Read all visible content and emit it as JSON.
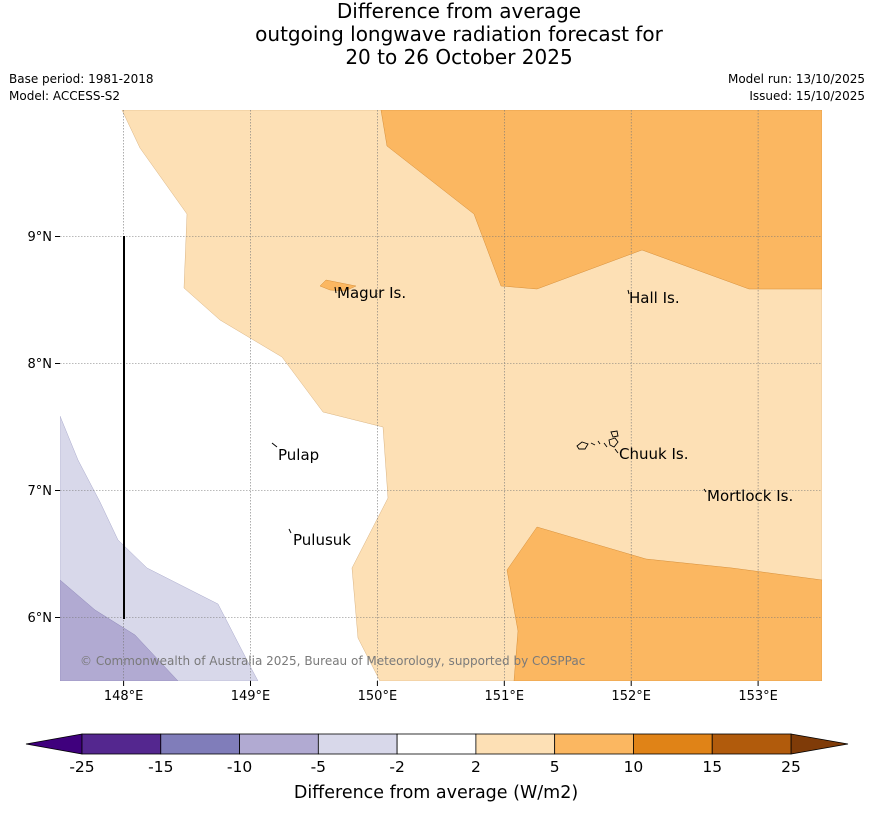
{
  "title": {
    "line1": "Difference from average",
    "line2": "outgoing longwave radiation forecast for",
    "line3": "20 to 26 October 2025"
  },
  "meta": {
    "base_period": "Base period: 1981-2018",
    "model": "Model: ACCESS-S2",
    "model_run": "Model run: 13/10/2025",
    "issued": "Issued: 15/10/2025"
  },
  "axes": {
    "lon_ticks": [
      "148°E",
      "149°E",
      "150°E",
      "151°E",
      "152°E",
      "153°E"
    ],
    "lat_ticks": [
      "9°N",
      "8°N",
      "7°N",
      "6°N"
    ]
  },
  "places": {
    "magur": "Magur Is.",
    "hall": "Hall Is.",
    "pulap": "Pulap",
    "chuuk": "Chuuk Is.",
    "mortlock": "Mortlock Is.",
    "pulusuk": "Pulusuk"
  },
  "copyright": "© Commonwealth of Australia 2025, Bureau of Meteorology, supported by COSPPac",
  "colorbar": {
    "title": "Difference from average (W/m2)",
    "ticks": [
      "-25",
      "-15",
      "-10",
      "-5",
      "-2",
      "2",
      "5",
      "10",
      "15",
      "25"
    ],
    "colors": [
      "#3f007d",
      "#54278f",
      "#807dba",
      "#b1aad2",
      "#d8d8ea",
      "#ffffff",
      "#fde0b5",
      "#fbb761",
      "#e08317",
      "#b15b0c",
      "#7f3b08"
    ]
  }
}
